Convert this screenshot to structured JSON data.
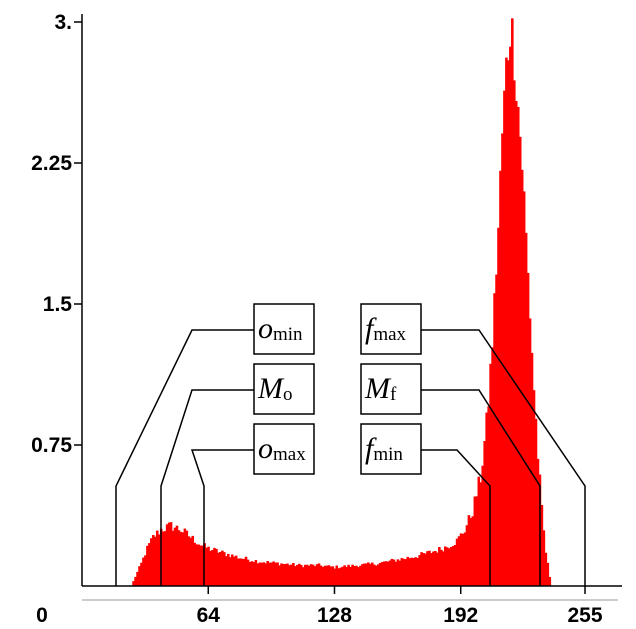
{
  "chart_data": {
    "type": "bar",
    "subtype": "histogram",
    "x_ticks": [
      "0",
      "64",
      "128",
      "192",
      "255"
    ],
    "x_tick_values": [
      0,
      64,
      128,
      192,
      255
    ],
    "y_ticks": [
      "3.",
      "2.25",
      "1.5",
      "0.75"
    ],
    "y_tick_values": [
      3,
      2.25,
      1.5,
      0.75
    ],
    "xlim": [
      0,
      255
    ],
    "ylim": [
      0,
      3.0
    ],
    "grid": false,
    "bar_color": "#ff0000",
    "profile_x": [
      25,
      27,
      30,
      33,
      36,
      40,
      45,
      50,
      55,
      60,
      64,
      70,
      80,
      90,
      100,
      110,
      120,
      128,
      140,
      150,
      160,
      170,
      180,
      185,
      190,
      194,
      198,
      202,
      205,
      208,
      211,
      213,
      215,
      217,
      219,
      221,
      223,
      225,
      227,
      229,
      231,
      233,
      235,
      237,
      238
    ],
    "profile_y": [
      0.0,
      0.05,
      0.12,
      0.2,
      0.26,
      0.3,
      0.32,
      0.3,
      0.26,
      0.22,
      0.2,
      0.18,
      0.15,
      0.13,
      0.12,
      0.11,
      0.11,
      0.1,
      0.11,
      0.12,
      0.14,
      0.16,
      0.19,
      0.21,
      0.24,
      0.3,
      0.4,
      0.58,
      0.85,
      1.3,
      1.9,
      2.4,
      2.75,
      3.0,
      2.85,
      2.55,
      2.25,
      1.85,
      1.45,
      1.05,
      0.7,
      0.4,
      0.18,
      0.05,
      0.0
    ],
    "annotations": [
      {
        "label": "o",
        "subscript": "min",
        "x": 27
      },
      {
        "label": "M",
        "subscript": "o",
        "x": 45
      },
      {
        "label": "o",
        "subscript": "max",
        "x": 63
      },
      {
        "label": "f",
        "subscript": "max",
        "x": 238
      },
      {
        "label": "M",
        "subscript": "f",
        "x": 218
      },
      {
        "label": "f",
        "subscript": "min",
        "x": 193
      }
    ]
  }
}
